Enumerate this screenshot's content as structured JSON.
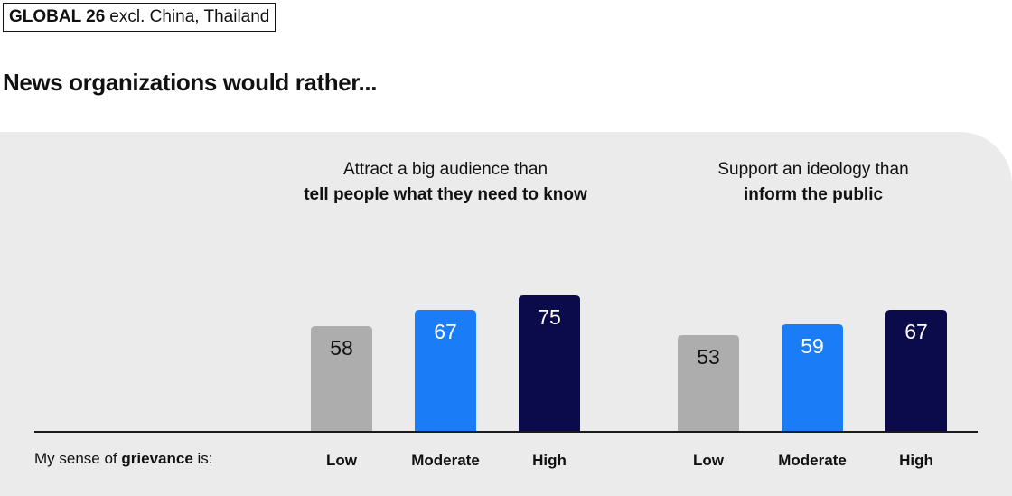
{
  "tag": {
    "bold": "GLOBAL 26",
    "rest": "excl. China, Thailand"
  },
  "headline": "News organizations would rather...",
  "axis_note": {
    "prefix": "My sense of",
    "bold": "grievance",
    "suffix": "is:"
  },
  "colors": {
    "Low": "#adadad",
    "Moderate": "#1a7cf6",
    "High": "#0b0a4a",
    "panel": "#ebebeb"
  },
  "chart_data": [
    {
      "type": "bar",
      "title_line1": "Attract a big audience than",
      "title_line2": "tell people what they need to know",
      "categories": [
        "Low",
        "Moderate",
        "High"
      ],
      "values": [
        58,
        67,
        75
      ]
    },
    {
      "type": "bar",
      "title_line1": "Support an ideology than",
      "title_line2": "inform the public",
      "categories": [
        "Low",
        "Moderate",
        "High"
      ],
      "values": [
        53,
        59,
        67
      ]
    }
  ]
}
